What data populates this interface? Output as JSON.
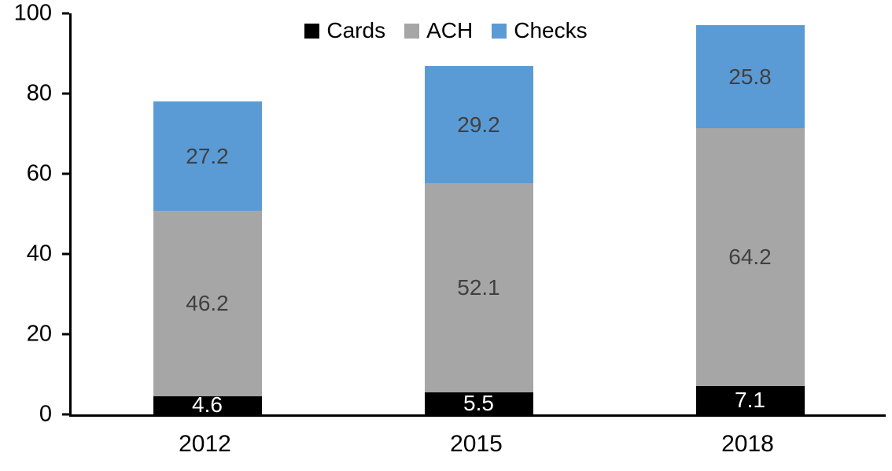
{
  "chart_data": {
    "type": "bar",
    "stacked": true,
    "title": "",
    "xlabel": "",
    "ylabel": "",
    "categories": [
      "2012",
      "2015",
      "2018"
    ],
    "series": [
      {
        "name": "Cards",
        "color": "#000000",
        "label_color": "#ffffff",
        "values": [
          4.6,
          5.5,
          7.1
        ]
      },
      {
        "name": "ACH",
        "color": "#a6a6a6",
        "label_color": "#404040",
        "values": [
          46.2,
          52.1,
          64.2
        ]
      },
      {
        "name": "Checks",
        "color": "#5b9bd5",
        "label_color": "#404040",
        "values": [
          27.2,
          29.2,
          25.8
        ]
      }
    ],
    "ylim": [
      0,
      100
    ],
    "yticks": [
      0,
      20,
      40,
      60,
      80,
      100
    ],
    "grid": false,
    "legend_position": "top-center",
    "axis_color": "#000000",
    "background": "#ffffff"
  }
}
